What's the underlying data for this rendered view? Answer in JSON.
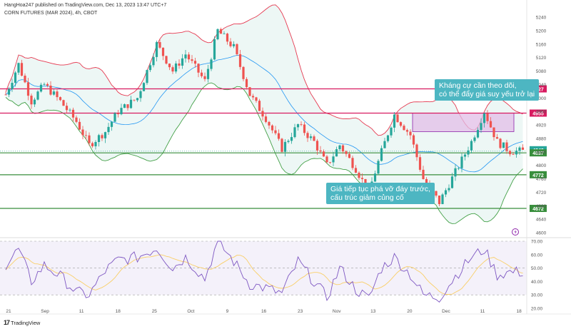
{
  "header": {
    "publisher": "HangHoa247 published on TradingView.com, Dec 13, 2023 13:47 UTC+7",
    "symbol": "CORN FUTURES (MAR 2024), 4h, CBOT"
  },
  "annotations": [
    {
      "text": "Kháng cự cần theo dõi,\ncó thể đẩy giá suy yếu trở lại"
    },
    {
      "text": "Giá tiếp tục phá vỡ đáy trước,\ncấu trúc giảm củng cố"
    }
  ],
  "footer": {
    "brand": "TradingView"
  },
  "colors": {
    "up": "#26a69a",
    "down": "#ef5350",
    "resistance": "#d81b60",
    "support": "#388e3c",
    "bb_upper": "#e53950",
    "bb_lower": "#43a047",
    "bb_basis": "#2196f3",
    "bb_fill": "#e8f5f2",
    "zone": "#e1bee7",
    "rsi": "#7e57c2",
    "rsi_ma": "#f9cf68",
    "rsi_band": "#ede7f6"
  },
  "chart_data": {
    "type": "candlestick",
    "price_axis": {
      "range": [
        4600,
        5240
      ],
      "ticks": [
        "5240",
        "5200",
        "5160",
        "5120",
        "5080",
        "5040",
        "5000",
        "4960",
        "4920",
        "4880",
        "4840",
        "4800",
        "4760",
        "4720",
        "4680",
        "4640",
        "4600"
      ]
    },
    "x_ticks": [
      "21",
      "Sep",
      "11",
      "18",
      "25",
      "Oct",
      "9",
      "16",
      "23",
      "Nov",
      "13",
      "20",
      "Dec",
      "11",
      "18"
    ],
    "levels": [
      {
        "label": "5027",
        "value": 5027,
        "kind": "resistance"
      },
      {
        "label": "4955",
        "value": 4955,
        "kind": "resistance"
      },
      {
        "label": "4842",
        "value": 4842,
        "kind": "current"
      },
      {
        "label": "4837",
        "value": 4837,
        "kind": "support"
      },
      {
        "label": "4772",
        "value": 4772,
        "kind": "support"
      },
      {
        "label": "4672",
        "value": 4672,
        "kind": "support"
      }
    ],
    "resistance_zone": [
      4900,
      4955
    ],
    "price_path": [
      [
        0,
        5010
      ],
      [
        4,
        5100
      ],
      [
        8,
        4990
      ],
      [
        12,
        5040
      ],
      [
        17,
        4990
      ],
      [
        22,
        4930
      ],
      [
        26,
        4860
      ],
      [
        31,
        4900
      ],
      [
        35,
        4960
      ],
      [
        41,
        5000
      ],
      [
        47,
        5160
      ],
      [
        52,
        5080
      ],
      [
        56,
        5130
      ],
      [
        62,
        5050
      ],
      [
        66,
        5200
      ],
      [
        71,
        5150
      ],
      [
        76,
        5010
      ],
      [
        81,
        4940
      ],
      [
        86,
        4850
      ],
      [
        91,
        4920
      ],
      [
        96,
        4870
      ],
      [
        100,
        4800
      ],
      [
        104,
        4860
      ],
      [
        109,
        4790
      ],
      [
        113,
        4720
      ],
      [
        117,
        4840
      ],
      [
        121,
        4950
      ],
      [
        126,
        4890
      ],
      [
        130,
        4760
      ],
      [
        135,
        4690
      ],
      [
        140,
        4780
      ],
      [
        145,
        4870
      ],
      [
        149,
        4960
      ],
      [
        153,
        4870
      ],
      [
        157,
        4842
      ]
    ],
    "rsi_axis": {
      "range": [
        20,
        70
      ],
      "ticks": [
        "70.00",
        "60.00",
        "50.00",
        "40.00",
        "30.00",
        "20.00"
      ]
    },
    "rsi_path": [
      [
        0,
        52
      ],
      [
        4,
        64
      ],
      [
        8,
        40
      ],
      [
        12,
        52
      ],
      [
        17,
        44
      ],
      [
        22,
        32
      ],
      [
        26,
        30
      ],
      [
        31,
        48
      ],
      [
        35,
        56
      ],
      [
        41,
        58
      ],
      [
        47,
        65
      ],
      [
        52,
        50
      ],
      [
        56,
        58
      ],
      [
        62,
        42
      ],
      [
        66,
        70
      ],
      [
        71,
        55
      ],
      [
        76,
        38
      ],
      [
        81,
        35
      ],
      [
        86,
        31
      ],
      [
        91,
        55
      ],
      [
        96,
        40
      ],
      [
        100,
        28
      ],
      [
        104,
        50
      ],
      [
        109,
        34
      ],
      [
        113,
        27
      ],
      [
        117,
        50
      ],
      [
        121,
        58
      ],
      [
        126,
        45
      ],
      [
        130,
        30
      ],
      [
        135,
        28
      ],
      [
        140,
        44
      ],
      [
        145,
        58
      ],
      [
        149,
        64
      ],
      [
        153,
        45
      ],
      [
        157,
        47
      ]
    ]
  }
}
